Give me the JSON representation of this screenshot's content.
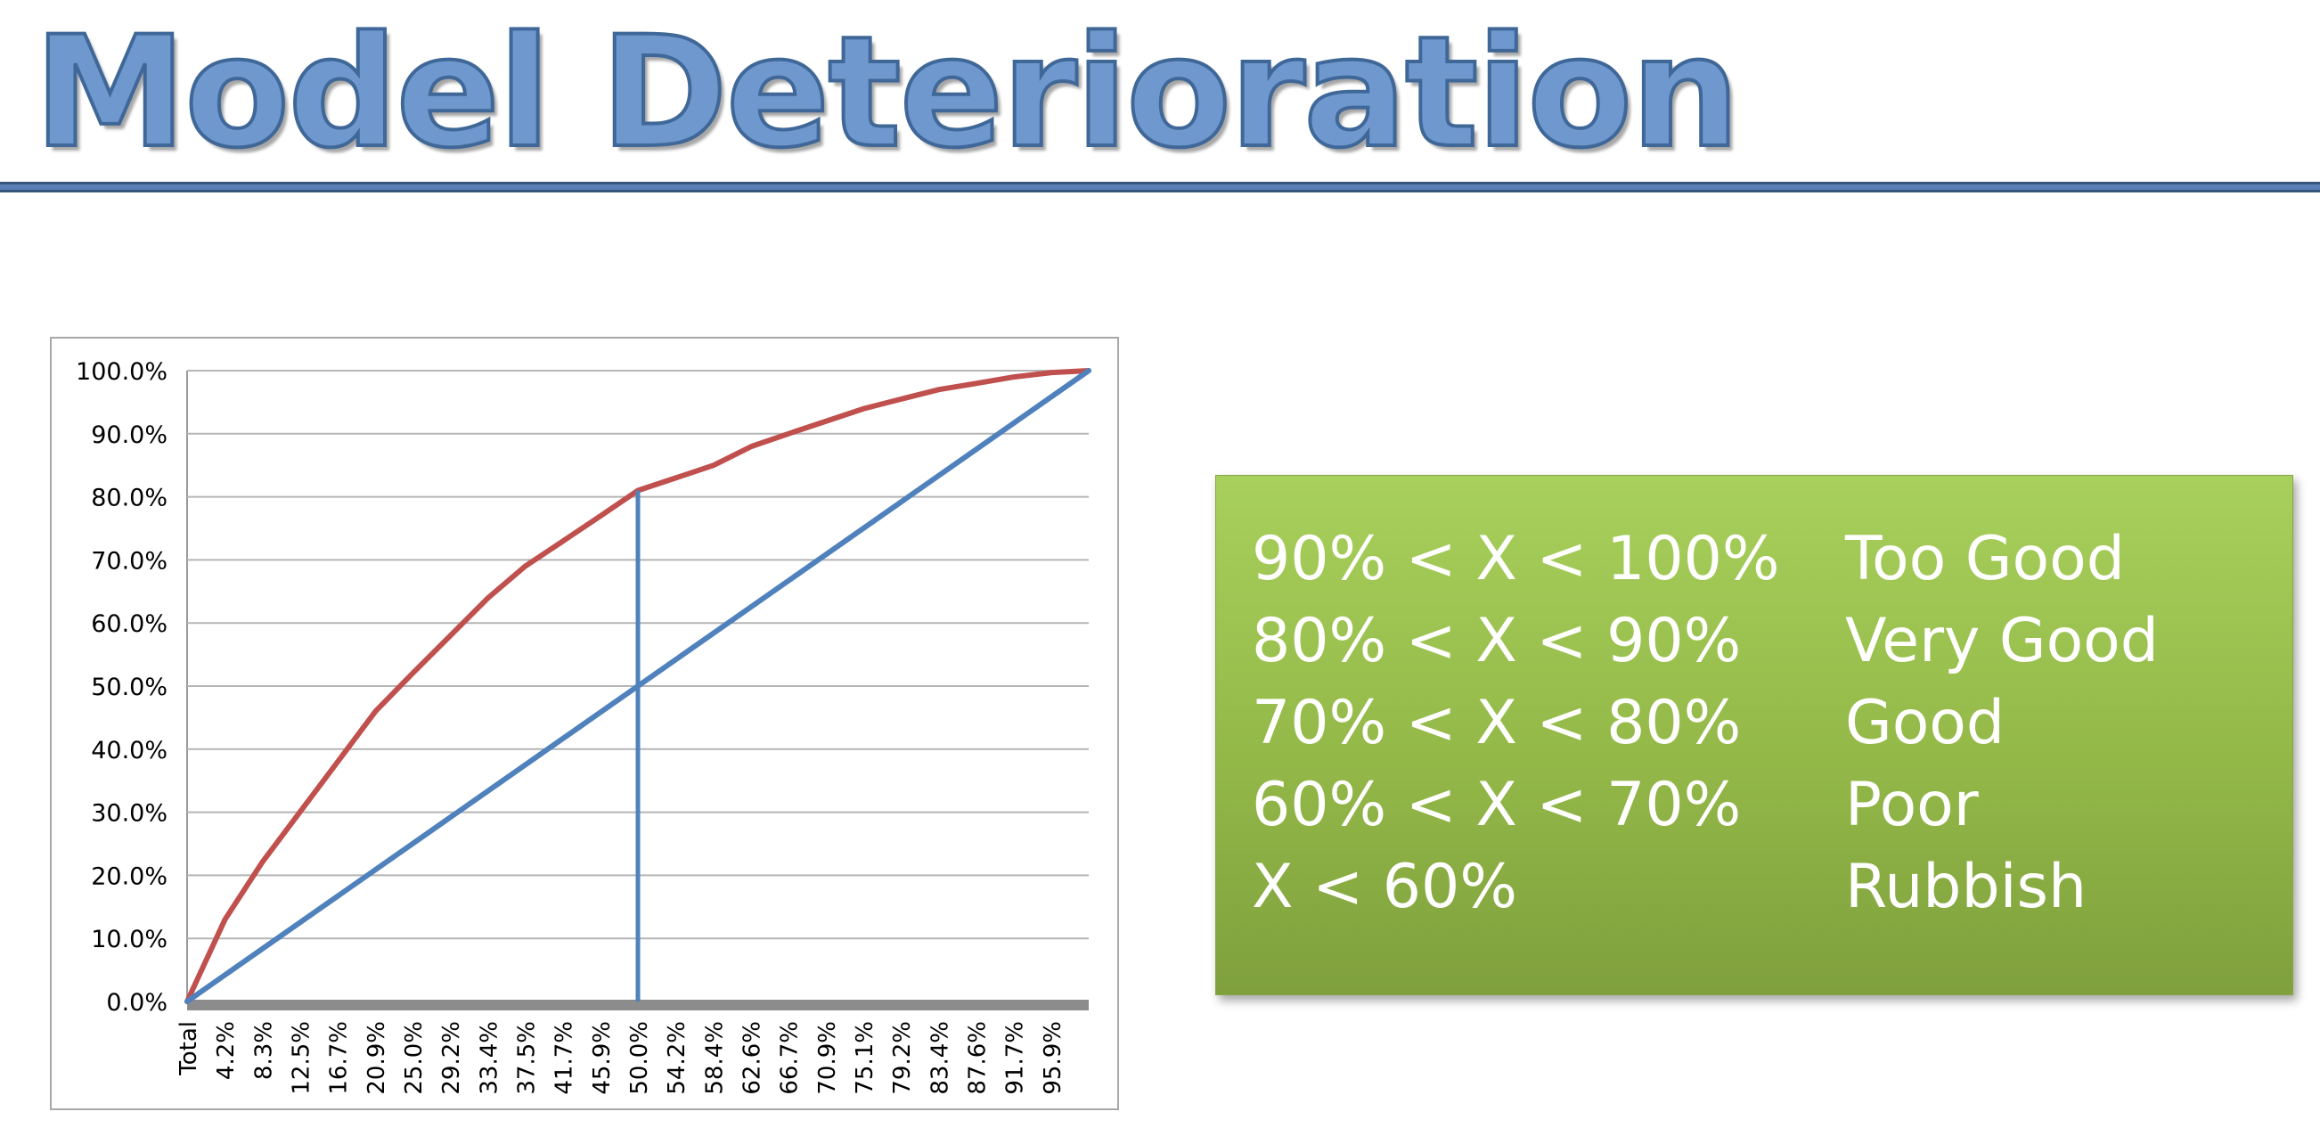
{
  "title": "Model Deterioration",
  "rating_table": [
    {
      "condition": "90% < X < 100%",
      "rating": "Too Good"
    },
    {
      "condition": "80% < X < 90%",
      "rating": "Very Good"
    },
    {
      "condition": "70% < X < 80%",
      "rating": "Good"
    },
    {
      "condition": "60% < X < 70%",
      "rating": "Poor"
    },
    {
      "condition": "X < 60%",
      "rating": "Rubbish"
    }
  ],
  "colors": {
    "title_fill": "#6f98cf",
    "model_curve": "#c0504d",
    "baseline": "#4f81bd",
    "panel_green": "#9bc451"
  },
  "chart_data": {
    "type": "line",
    "title": "",
    "xlabel": "",
    "ylabel": "",
    "ylim": [
      0,
      100
    ],
    "y_ticks": [
      "0.0%",
      "10.0%",
      "20.0%",
      "30.0%",
      "40.0%",
      "50.0%",
      "60.0%",
      "70.0%",
      "80.0%",
      "90.0%",
      "100.0%"
    ],
    "x_categories": [
      "Total",
      "4.2%",
      "8.3%",
      "12.5%",
      "16.7%",
      "20.9%",
      "25.0%",
      "29.2%",
      "33.4%",
      "37.5%",
      "41.7%",
      "45.9%",
      "50.0%",
      "54.2%",
      "58.4%",
      "62.6%",
      "66.7%",
      "70.9%",
      "75.1%",
      "79.2%",
      "83.4%",
      "87.6%",
      "91.7%",
      "95.9%"
    ],
    "grid": true,
    "series": [
      {
        "color": "#c0504d",
        "x": [
          0,
          4.2,
          8.3,
          12.5,
          16.7,
          20.9,
          25.0,
          29.2,
          33.4,
          37.5,
          41.7,
          45.9,
          50.0,
          54.2,
          58.4,
          62.6,
          66.7,
          70.9,
          75.1,
          79.2,
          83.4,
          87.6,
          91.7,
          95.9,
          100
        ],
        "y": [
          0,
          13,
          22,
          30,
          38,
          46,
          52,
          58,
          64,
          69,
          73,
          77,
          81,
          83,
          85,
          88,
          90,
          92,
          94,
          95.5,
          97,
          98,
          99,
          99.7,
          100
        ]
      },
      {
        "color": "#4f81bd",
        "x": [
          0,
          100
        ],
        "y": [
          0,
          100
        ]
      }
    ],
    "annotations": [
      {
        "type": "vertical-line",
        "x": 50.0,
        "y_from": 0,
        "y_to": 81,
        "color": "#4f81bd"
      }
    ]
  }
}
